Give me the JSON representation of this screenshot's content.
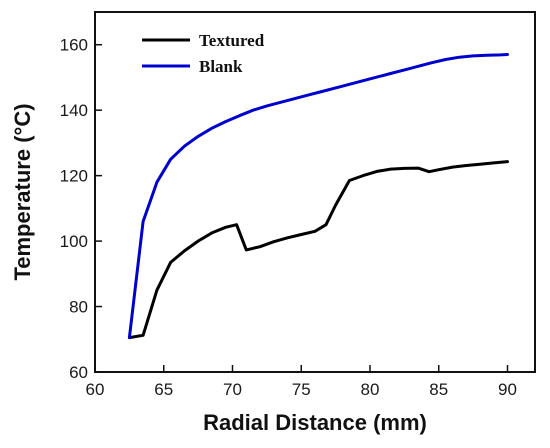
{
  "chart_data": {
    "type": "line",
    "title": "",
    "xlabel": "Radial Distance (mm)",
    "ylabel": "Temperature (°C)",
    "xlim": [
      60,
      92
    ],
    "ylim": [
      60,
      170
    ],
    "xticks": [
      60,
      65,
      70,
      75,
      80,
      85,
      90
    ],
    "yticks": [
      60,
      80,
      100,
      120,
      140,
      160
    ],
    "grid": false,
    "legend": "top-left",
    "series": [
      {
        "name": "Textured",
        "color": "#000000",
        "x": [
          62.5,
          63.5,
          64.5,
          65.5,
          66.5,
          67.5,
          68.5,
          69.5,
          70.3,
          71.0,
          72.0,
          73.0,
          74.0,
          75.0,
          76.0,
          76.8,
          77.5,
          78.5,
          79.5,
          80.5,
          81.5,
          82.5,
          83.5,
          84.3,
          85.0,
          86.0,
          87.0,
          88.0,
          89.0,
          90.0
        ],
        "y": [
          70.5,
          71.2,
          85.0,
          93.5,
          97.0,
          100.0,
          102.5,
          104.2,
          105.0,
          97.3,
          98.3,
          99.8,
          101.0,
          102.0,
          103.0,
          105.0,
          111.0,
          118.5,
          120.0,
          121.3,
          122.0,
          122.2,
          122.3,
          121.2,
          121.8,
          122.6,
          123.1,
          123.5,
          123.9,
          124.3
        ]
      },
      {
        "name": "Blank",
        "color": "#0000cc",
        "x": [
          62.5,
          63.5,
          64.5,
          65.5,
          66.5,
          67.5,
          68.5,
          69.5,
          70.5,
          71.5,
          72.5,
          73.5,
          74.5,
          75.5,
          76.5,
          77.5,
          78.5,
          79.5,
          80.5,
          81.5,
          82.5,
          83.5,
          84.5,
          85.5,
          86.5,
          87.5,
          88.5,
          89.5,
          90.0
        ],
        "y": [
          70.5,
          106.0,
          118.0,
          125.0,
          129.0,
          132.0,
          134.5,
          136.5,
          138.3,
          140.0,
          141.3,
          142.4,
          143.5,
          144.6,
          145.7,
          146.8,
          147.9,
          149.0,
          150.1,
          151.2,
          152.3,
          153.4,
          154.5,
          155.5,
          156.2,
          156.6,
          156.8,
          156.9,
          157.0
        ]
      }
    ]
  }
}
